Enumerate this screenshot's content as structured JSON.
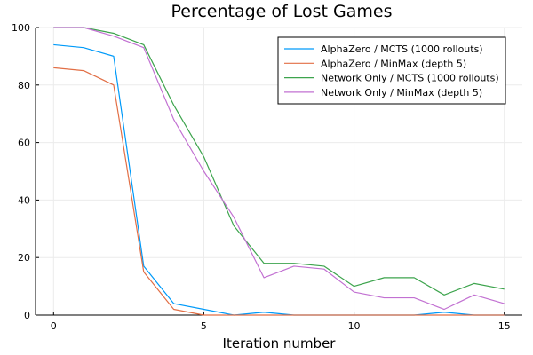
{
  "chart_data": {
    "type": "line",
    "title": "Percentage of Lost Games",
    "xlabel": "Iteration number",
    "ylabel": "",
    "xlim": [
      -0.6,
      15.6
    ],
    "ylim": [
      0,
      100
    ],
    "xticks": [
      0,
      5,
      10,
      15
    ],
    "yticks": [
      0,
      20,
      40,
      60,
      80,
      100
    ],
    "grid": true,
    "legend_position": "top-right",
    "x": [
      0,
      1,
      2,
      3,
      4,
      5,
      6,
      7,
      8,
      9,
      10,
      11,
      12,
      13,
      14,
      15
    ],
    "series": [
      {
        "name": "AlphaZero / MCTS (1000 rollouts)",
        "color": "#009af9",
        "values": [
          94,
          93,
          90,
          17,
          4,
          2,
          0,
          1,
          0,
          0,
          0,
          0,
          0,
          1,
          0,
          0
        ]
      },
      {
        "name": "AlphaZero / MinMax (depth 5)",
        "color": "#e26f46",
        "values": [
          86,
          85,
          80,
          15,
          2,
          0,
          0,
          0,
          0,
          0,
          0,
          0,
          0,
          0,
          0,
          0
        ]
      },
      {
        "name": "Network Only / MCTS (1000 rollouts)",
        "color": "#3da44d",
        "values": [
          100,
          100,
          98,
          94,
          73,
          55,
          31,
          18,
          18,
          17,
          10,
          13,
          13,
          7,
          11,
          9
        ]
      },
      {
        "name": "Network Only / MinMax (depth 5)",
        "color": "#c271d2",
        "values": [
          100,
          100,
          97,
          93,
          68,
          50,
          34,
          13,
          17,
          16,
          8,
          6,
          6,
          2,
          7,
          4
        ]
      }
    ]
  }
}
